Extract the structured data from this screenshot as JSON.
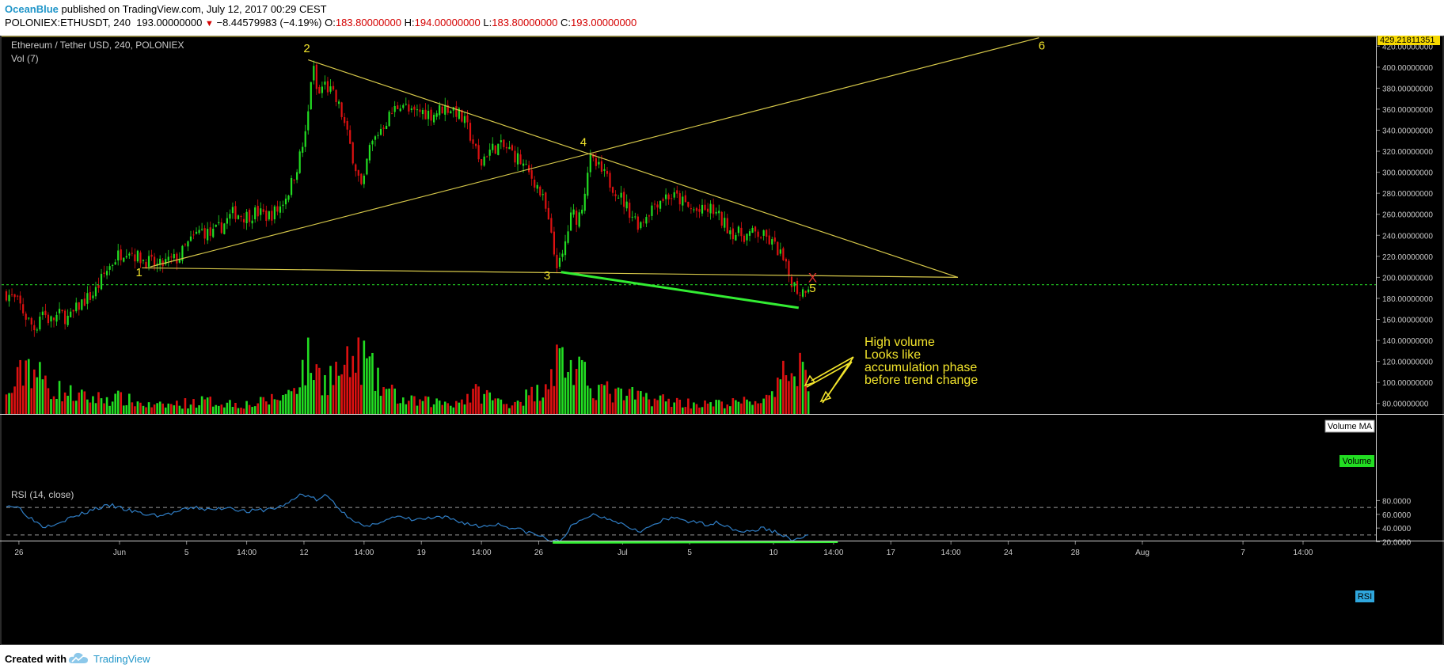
{
  "header": {
    "author": "OceanBlue",
    "published": "published on TradingView.com, July 12, 2017 00:29 CEST",
    "symbol": "POLONIEX:ETHUSDT, 240",
    "price": "193.00000000",
    "change_arrow": "▼",
    "change": "−8.44579983 (−4.19%)",
    "o_label": "O:",
    "o_value": "183.80000000",
    "h_label": "H:",
    "h_value": "194.00000000",
    "l_label": "L:",
    "l_value": "183.80000000",
    "c_label": "C:",
    "c_value": "193.00000000"
  },
  "footer": {
    "created_with": "Created with",
    "brand": "TradingView"
  },
  "colors": {
    "background": "#000000",
    "up_candle": "#22dd22",
    "down_candle": "#dd1111",
    "trendline": "#d6c84a",
    "annotation": "#f2e42c",
    "divergence": "#33ee33",
    "current_price_line": "#22cc22",
    "rsi_line": "#2f7dc4",
    "axis_text": "#c8c8c8"
  },
  "chart_data": [
    {
      "type": "candlestick",
      "panel": "price",
      "title": "Ethereum / Tether USD, 240, POLONIEX",
      "subtitle": "Vol (7)",
      "ylim": [
        70,
        430
      ],
      "yticks": [
        80,
        100,
        120,
        140,
        160,
        180,
        200,
        220,
        240,
        260,
        280,
        300,
        320,
        340,
        360,
        380,
        400,
        420
      ],
      "ytick_labels": [
        "80.00000000",
        "100.00000000",
        "120.00000000",
        "140.00000000",
        "160.00000000",
        "180.00000000",
        "200.00000000",
        "220.00000000",
        "240.00000000",
        "260.00000000",
        "280.00000000",
        "300.00000000",
        "320.00000000",
        "340.00000000",
        "360.00000000",
        "380.00000000",
        "400.00000000",
        "420.00000000"
      ],
      "xlim": [
        "2017-05-25 06:00",
        "2017-08-14 20:00"
      ],
      "xticks": [
        {
          "t": "2017-05-26 00:00",
          "label": "26"
        },
        {
          "t": "2017-06-01 00:00",
          "label": "Jun"
        },
        {
          "t": "2017-06-05 00:00",
          "label": "5"
        },
        {
          "t": "2017-06-08 14:00",
          "label": "14:00"
        },
        {
          "t": "2017-06-12 00:00",
          "label": "12"
        },
        {
          "t": "2017-06-15 14:00",
          "label": "14:00"
        },
        {
          "t": "2017-06-19 00:00",
          "label": "19"
        },
        {
          "t": "2017-06-22 14:00",
          "label": "14:00"
        },
        {
          "t": "2017-06-26 00:00",
          "label": "26"
        },
        {
          "t": "2017-07-01 00:00",
          "label": "Jul"
        },
        {
          "t": "2017-07-05 00:00",
          "label": "5"
        },
        {
          "t": "2017-07-10 00:00",
          "label": "10"
        },
        {
          "t": "2017-07-13 14:00",
          "label": "14:00"
        },
        {
          "t": "2017-07-17 00:00",
          "label": "17"
        },
        {
          "t": "2017-07-20 14:00",
          "label": "14:00"
        },
        {
          "t": "2017-07-24 00:00",
          "label": "24"
        },
        {
          "t": "2017-07-28 00:00",
          "label": "28"
        },
        {
          "t": "2017-08-01 00:00",
          "label": "Aug"
        },
        {
          "t": "2017-08-07 00:00",
          "label": "7"
        },
        {
          "t": "2017-08-10 14:00",
          "label": "14:00"
        }
      ],
      "current_price": 193,
      "top_price_label": "429.21811351",
      "price_path": [
        [
          "2017-05-25 06:00",
          185
        ],
        [
          "2017-05-26 00:00",
          175
        ],
        [
          "2017-05-26 12:00",
          160
        ],
        [
          "2017-05-27 00:00",
          150
        ],
        [
          "2017-05-27 08:00",
          170
        ],
        [
          "2017-05-27 20:00",
          158
        ],
        [
          "2017-05-28 12:00",
          165
        ],
        [
          "2017-05-29 00:00",
          160
        ],
        [
          "2017-05-29 16:00",
          175
        ],
        [
          "2017-05-30 12:00",
          185
        ],
        [
          "2017-05-31 04:00",
          205
        ],
        [
          "2017-05-31 20:00",
          220
        ],
        [
          "2017-06-01 12:00",
          228
        ],
        [
          "2017-06-02 00:00",
          220
        ],
        [
          "2017-06-02 16:00",
          215
        ],
        [
          "2017-06-03 08:00",
          210
        ],
        [
          "2017-06-03 20:00",
          215
        ],
        [
          "2017-06-04 12:00",
          218
        ],
        [
          "2017-06-05 00:00",
          230
        ],
        [
          "2017-06-05 20:00",
          245
        ],
        [
          "2017-06-06 12:00",
          240
        ],
        [
          "2017-06-07 04:00",
          250
        ],
        [
          "2017-06-07 20:00",
          262
        ],
        [
          "2017-06-08 12:00",
          258
        ],
        [
          "2017-06-09 04:00",
          262
        ],
        [
          "2017-06-09 20:00",
          258
        ],
        [
          "2017-06-10 12:00",
          265
        ],
        [
          "2017-06-11 04:00",
          285
        ],
        [
          "2017-06-11 16:00",
          310
        ],
        [
          "2017-06-12 04:00",
          340
        ],
        [
          "2017-06-12 12:00",
          405
        ],
        [
          "2017-06-12 20:00",
          370
        ],
        [
          "2017-06-13 04:00",
          385
        ],
        [
          "2017-06-13 16:00",
          375
        ],
        [
          "2017-06-14 04:00",
          360
        ],
        [
          "2017-06-14 16:00",
          330
        ],
        [
          "2017-06-15 04:00",
          300
        ],
        [
          "2017-06-15 12:00",
          280
        ],
        [
          "2017-06-15 20:00",
          320
        ],
        [
          "2017-06-16 12:00",
          340
        ],
        [
          "2017-06-17 04:00",
          355
        ],
        [
          "2017-06-17 20:00",
          368
        ],
        [
          "2017-06-18 08:00",
          355
        ],
        [
          "2017-06-19 00:00",
          358
        ],
        [
          "2017-06-19 16:00",
          355
        ],
        [
          "2017-06-20 08:00",
          362
        ],
        [
          "2017-06-21 00:00",
          360
        ],
        [
          "2017-06-21 16:00",
          345
        ],
        [
          "2017-06-22 04:00",
          325
        ],
        [
          "2017-06-22 12:00",
          305
        ],
        [
          "2017-06-22 20:00",
          318
        ],
        [
          "2017-06-23 12:00",
          325
        ],
        [
          "2017-06-24 04:00",
          322
        ],
        [
          "2017-06-24 20:00",
          312
        ],
        [
          "2017-06-25 08:00",
          300
        ],
        [
          "2017-06-25 20:00",
          290
        ],
        [
          "2017-06-26 08:00",
          270
        ],
        [
          "2017-06-26 16:00",
          245
        ],
        [
          "2017-06-27 00:00",
          215
        ],
        [
          "2017-06-27 08:00",
          212
        ],
        [
          "2017-06-27 16:00",
          240
        ],
        [
          "2017-06-28 00:00",
          262
        ],
        [
          "2017-06-28 08:00",
          255
        ],
        [
          "2017-06-28 16:00",
          275
        ],
        [
          "2017-06-29 00:00",
          312
        ],
        [
          "2017-06-29 12:00",
          305
        ],
        [
          "2017-06-30 00:00",
          295
        ],
        [
          "2017-06-30 16:00",
          282
        ],
        [
          "2017-07-01 08:00",
          265
        ],
        [
          "2017-07-02 00:00",
          250
        ],
        [
          "2017-07-02 12:00",
          262
        ],
        [
          "2017-07-03 00:00",
          272
        ],
        [
          "2017-07-03 16:00",
          278
        ],
        [
          "2017-07-04 08:00",
          275
        ],
        [
          "2017-07-05 00:00",
          265
        ],
        [
          "2017-07-05 16:00",
          262
        ],
        [
          "2017-07-06 08:00",
          265
        ],
        [
          "2017-07-07 00:00",
          252
        ],
        [
          "2017-07-07 16:00",
          242
        ],
        [
          "2017-07-08 08:00",
          240
        ],
        [
          "2017-07-09 00:00",
          242
        ],
        [
          "2017-07-09 16:00",
          236
        ],
        [
          "2017-07-10 08:00",
          225
        ],
        [
          "2017-07-10 20:00",
          205
        ],
        [
          "2017-07-11 08:00",
          190
        ],
        [
          "2017-07-11 16:00",
          185
        ],
        [
          "2017-07-12 00:00",
          193
        ]
      ],
      "volume_path": [
        [
          "2017-05-25 06:00",
          0.25
        ],
        [
          "2017-05-26 00:00",
          0.55
        ],
        [
          "2017-05-26 12:00",
          0.85
        ],
        [
          "2017-05-27 04:00",
          0.6
        ],
        [
          "2017-05-28 00:00",
          0.4
        ],
        [
          "2017-05-30 00:00",
          0.25
        ],
        [
          "2017-06-01 00:00",
          0.25
        ],
        [
          "2017-06-03 00:00",
          0.12
        ],
        [
          "2017-06-06 00:00",
          0.2
        ],
        [
          "2017-06-09 00:00",
          0.15
        ],
        [
          "2017-06-11 00:00",
          0.3
        ],
        [
          "2017-06-12 08:00",
          0.85
        ],
        [
          "2017-06-13 00:00",
          0.55
        ],
        [
          "2017-06-14 12:00",
          0.7
        ],
        [
          "2017-06-15 12:00",
          0.9
        ],
        [
          "2017-06-16 12:00",
          0.45
        ],
        [
          "2017-06-18 00:00",
          0.2
        ],
        [
          "2017-06-21 00:00",
          0.18
        ],
        [
          "2017-06-22 12:00",
          0.35
        ],
        [
          "2017-06-24 00:00",
          0.15
        ],
        [
          "2017-06-26 00:00",
          0.35
        ],
        [
          "2017-06-26 20:00",
          0.75
        ],
        [
          "2017-06-27 08:00",
          0.9
        ],
        [
          "2017-06-28 00:00",
          0.7
        ],
        [
          "2017-06-29 00:00",
          0.5
        ],
        [
          "2017-06-30 12:00",
          0.3
        ],
        [
          "2017-07-02 00:00",
          0.28
        ],
        [
          "2017-07-04 00:00",
          0.2
        ],
        [
          "2017-07-06 00:00",
          0.15
        ],
        [
          "2017-07-08 00:00",
          0.18
        ],
        [
          "2017-07-10 00:00",
          0.25
        ],
        [
          "2017-07-10 20:00",
          0.7
        ],
        [
          "2017-07-11 08:00",
          0.9
        ],
        [
          "2017-07-12 00:00",
          0.6
        ]
      ],
      "trendlines": [
        {
          "name": "lower-rising",
          "from": [
            "2017-06-02 20:00",
            210
          ],
          "to": [
            "2017-07-25 20:00",
            428
          ]
        },
        {
          "name": "upper-falling",
          "from": [
            "2017-06-12 06:00",
            407
          ],
          "to": [
            "2017-07-21 00:00",
            200
          ]
        },
        {
          "name": "horizontal-support",
          "from": [
            "2017-06-02 08:00",
            209
          ],
          "to": [
            "2017-07-21 00:00",
            200
          ]
        }
      ],
      "divergence_line": {
        "from": [
          "2017-06-27 08:00",
          205
        ],
        "to": [
          "2017-07-11 12:00",
          171
        ]
      },
      "labels": [
        {
          "text": "1",
          "t": "2017-06-02 04:00",
          "v": 201
        },
        {
          "text": "2",
          "t": "2017-06-12 04:00",
          "v": 414
        },
        {
          "text": "3",
          "t": "2017-06-26 12:00",
          "v": 198
        },
        {
          "text": "4",
          "t": "2017-06-28 16:00",
          "v": 325
        },
        {
          "text": "5",
          "t": "2017-07-12 08:00",
          "v": 186
        },
        {
          "text": "6",
          "t": "2017-07-26 00:00",
          "v": 417
        }
      ],
      "cross_marker": {
        "text": "X",
        "t": "2017-07-12 08:00",
        "v": 200
      },
      "note": [
        "High volume",
        "Looks like",
        "accumulation phase",
        "before trend change"
      ],
      "legend_boxes": [
        "Volume MA",
        "Volume"
      ]
    },
    {
      "type": "line",
      "panel": "rsi",
      "title": "RSI (14, close)",
      "series_label": "RSI",
      "ylim": [
        16,
        92
      ],
      "yticks": [
        20,
        40,
        60,
        80
      ],
      "ytick_labels": [
        "20.0000",
        "40.0000",
        "60.0000",
        "80.0000"
      ],
      "levels": [
        70,
        30
      ],
      "values_path": [
        [
          "2017-05-25 06:00",
          74
        ],
        [
          "2017-05-26 00:00",
          70
        ],
        [
          "2017-05-26 16:00",
          55
        ],
        [
          "2017-05-27 12:00",
          42
        ],
        [
          "2017-05-28 12:00",
          50
        ],
        [
          "2017-05-29 12:00",
          58
        ],
        [
          "2017-05-30 12:00",
          68
        ],
        [
          "2017-05-31 12:00",
          73
        ],
        [
          "2017-06-01 12:00",
          66
        ],
        [
          "2017-06-02 12:00",
          60
        ],
        [
          "2017-06-03 12:00",
          58
        ],
        [
          "2017-06-04 12:00",
          64
        ],
        [
          "2017-06-05 12:00",
          70
        ],
        [
          "2017-06-06 12:00",
          66
        ],
        [
          "2017-06-07 12:00",
          71
        ],
        [
          "2017-06-08 12:00",
          64
        ],
        [
          "2017-06-09 12:00",
          66
        ],
        [
          "2017-06-10 12:00",
          70
        ],
        [
          "2017-06-11 08:00",
          80
        ],
        [
          "2017-06-11 20:00",
          90
        ],
        [
          "2017-06-12 08:00",
          86
        ],
        [
          "2017-06-12 20:00",
          80
        ],
        [
          "2017-06-13 08:00",
          88
        ],
        [
          "2017-06-13 20:00",
          76
        ],
        [
          "2017-06-14 08:00",
          62
        ],
        [
          "2017-06-14 20:00",
          55
        ],
        [
          "2017-06-15 08:00",
          45
        ],
        [
          "2017-06-15 20:00",
          40
        ],
        [
          "2017-06-16 12:00",
          50
        ],
        [
          "2017-06-17 12:00",
          56
        ],
        [
          "2017-06-18 12:00",
          52
        ],
        [
          "2017-06-19 12:00",
          54
        ],
        [
          "2017-06-20 12:00",
          55
        ],
        [
          "2017-06-21 12:00",
          48
        ],
        [
          "2017-06-22 12:00",
          42
        ],
        [
          "2017-06-23 12:00",
          46
        ],
        [
          "2017-06-24 12:00",
          40
        ],
        [
          "2017-06-25 12:00",
          33
        ],
        [
          "2017-06-26 08:00",
          26
        ],
        [
          "2017-06-26 20:00",
          20
        ],
        [
          "2017-06-27 08:00",
          22
        ],
        [
          "2017-06-27 20:00",
          40
        ],
        [
          "2017-06-28 12:00",
          50
        ],
        [
          "2017-06-29 04:00",
          60
        ],
        [
          "2017-06-29 20:00",
          56
        ],
        [
          "2017-06-30 12:00",
          52
        ],
        [
          "2017-07-01 08:00",
          42
        ],
        [
          "2017-07-02 04:00",
          36
        ],
        [
          "2017-07-02 20:00",
          44
        ],
        [
          "2017-07-03 12:00",
          52
        ],
        [
          "2017-07-04 08:00",
          55
        ],
        [
          "2017-07-05 04:00",
          48
        ],
        [
          "2017-07-06 00:00",
          46
        ],
        [
          "2017-07-06 20:00",
          48
        ],
        [
          "2017-07-07 16:00",
          38
        ],
        [
          "2017-07-08 12:00",
          34
        ],
        [
          "2017-07-09 08:00",
          40
        ],
        [
          "2017-07-10 04:00",
          34
        ],
        [
          "2017-07-10 20:00",
          26
        ],
        [
          "2017-07-11 08:00",
          22
        ],
        [
          "2017-07-11 16:00",
          24
        ],
        [
          "2017-07-12 00:00",
          32
        ]
      ],
      "divergence_line": {
        "from": [
          "2017-06-26 20:00",
          19
        ],
        "to": [
          "2017-07-13 20:00",
          20
        ]
      }
    }
  ]
}
